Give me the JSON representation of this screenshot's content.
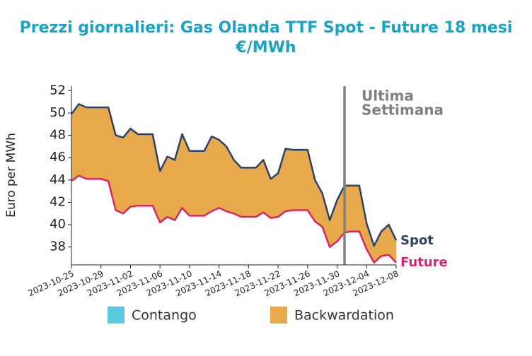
{
  "chart_data": {
    "type": "line",
    "title": "Prezzi giornalieri: Gas Olanda TTF Spot - Future 18 mesi",
    "subtitle": "€/MWh",
    "y_label": "Euro per MWh",
    "x": [
      "2023-10-25",
      "2023-10-26",
      "2023-10-27",
      "2023-10-28",
      "2023-10-29",
      "2023-10-30",
      "2023-10-31",
      "2023-11-01",
      "2023-11-02",
      "2023-11-03",
      "2023-11-04",
      "2023-11-05",
      "2023-11-06",
      "2023-11-07",
      "2023-11-08",
      "2023-11-09",
      "2023-11-10",
      "2023-11-11",
      "2023-11-12",
      "2023-11-13",
      "2023-11-14",
      "2023-11-15",
      "2023-11-16",
      "2023-11-17",
      "2023-11-18",
      "2023-11-19",
      "2023-11-20",
      "2023-11-21",
      "2023-11-22",
      "2023-11-23",
      "2023-11-24",
      "2023-11-25",
      "2023-11-26",
      "2023-11-27",
      "2023-11-28",
      "2023-11-29",
      "2023-11-30",
      "2023-12-01",
      "2023-12-02",
      "2023-12-03",
      "2023-12-04",
      "2023-12-05",
      "2023-12-06",
      "2023-12-07",
      "2023-12-08"
    ],
    "series": [
      {
        "name": "Spot",
        "color": "#2e4160",
        "values": [
          49.9,
          50.8,
          50.5,
          50.5,
          50.5,
          50.5,
          48.0,
          47.8,
          48.6,
          48.1,
          48.1,
          48.1,
          44.8,
          46.1,
          45.8,
          48.1,
          46.6,
          46.6,
          46.6,
          47.9,
          47.6,
          47.0,
          45.8,
          45.1,
          45.1,
          45.1,
          45.8,
          44.1,
          44.6,
          46.8,
          46.7,
          46.7,
          46.7,
          44.0,
          42.8,
          40.4,
          42.2,
          43.5,
          43.5,
          43.5,
          40.1,
          38.1,
          39.4,
          40.0,
          38.6
        ]
      },
      {
        "name": "Future",
        "color": "#d6246e",
        "values": [
          43.9,
          44.4,
          44.1,
          44.1,
          44.1,
          43.9,
          41.3,
          41.0,
          41.6,
          41.7,
          41.7,
          41.7,
          40.2,
          40.7,
          40.4,
          41.5,
          40.8,
          40.8,
          40.8,
          41.2,
          41.5,
          41.2,
          41.0,
          40.7,
          40.7,
          40.7,
          41.1,
          40.6,
          40.7,
          41.2,
          41.3,
          41.3,
          41.3,
          40.3,
          39.8,
          38.0,
          38.5,
          39.3,
          39.4,
          39.4,
          37.8,
          36.6,
          37.2,
          37.3,
          36.6
        ]
      }
    ],
    "fill": [
      {
        "name": "Contango",
        "color": "#5bc8e0"
      },
      {
        "name": "Backwardation",
        "color": "#e8a94a"
      }
    ],
    "xlim": [
      "2023-10-25",
      "2023-12-08"
    ],
    "xticks": [
      "2023-10-25",
      "2023-10-29",
      "2023-11-02",
      "2023-11-06",
      "2023-11-10",
      "2023-11-14",
      "2023-11-18",
      "2023-11-22",
      "2023-11-26",
      "2023-11-30",
      "2023-12-04",
      "2023-12-08"
    ],
    "ylim": [
      36.4,
      52.4
    ],
    "yticks": [
      38,
      40,
      42,
      44,
      46,
      48,
      50,
      52
    ],
    "annotation": {
      "x": "2023-12-01",
      "text": [
        "Ultima",
        "Settimana"
      ],
      "color": "#808080"
    }
  }
}
